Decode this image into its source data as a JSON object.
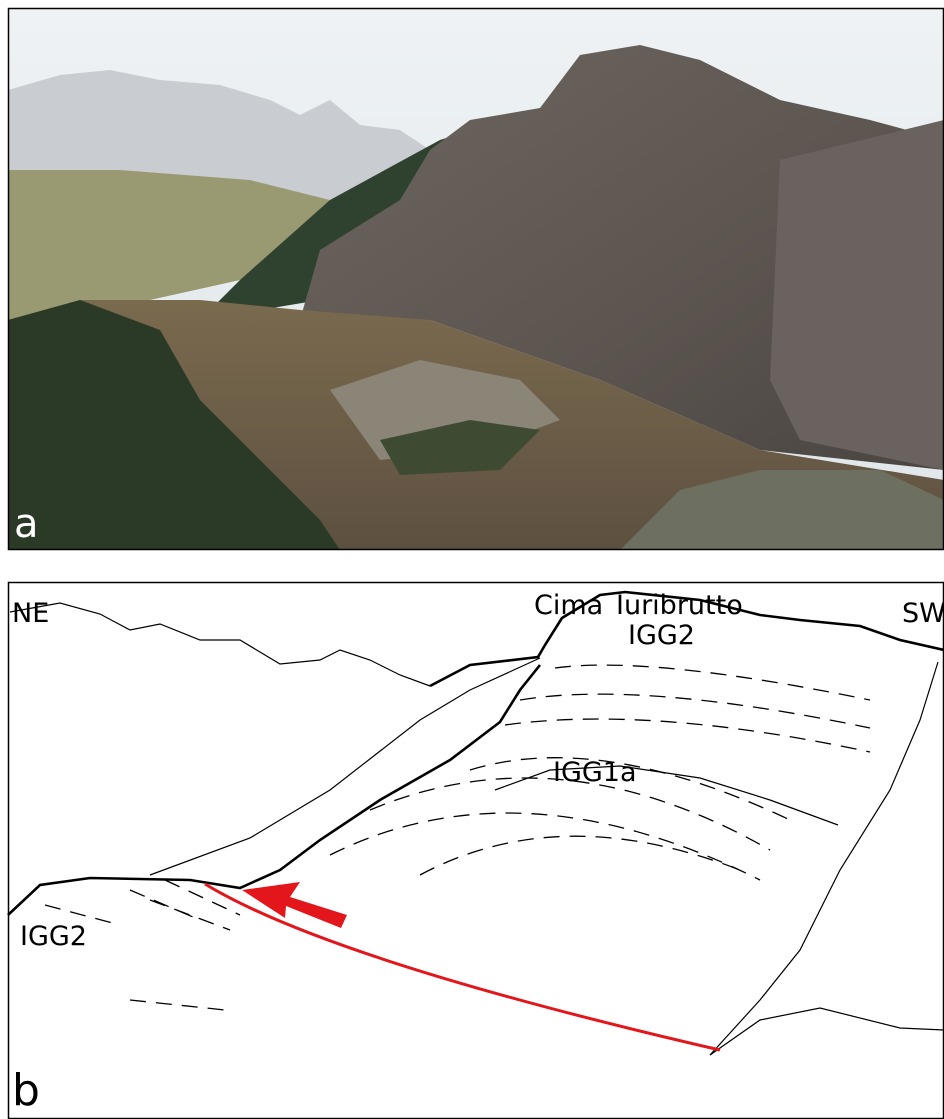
{
  "photo": {
    "label": "a"
  },
  "sketch": {
    "label": "b",
    "directions": [
      "NE",
      "SW"
    ],
    "peak": [
      "Cima",
      "Iuribrutto"
    ],
    "units": [
      "IGG2",
      "IGG1a",
      "IGG2"
    ]
  }
}
